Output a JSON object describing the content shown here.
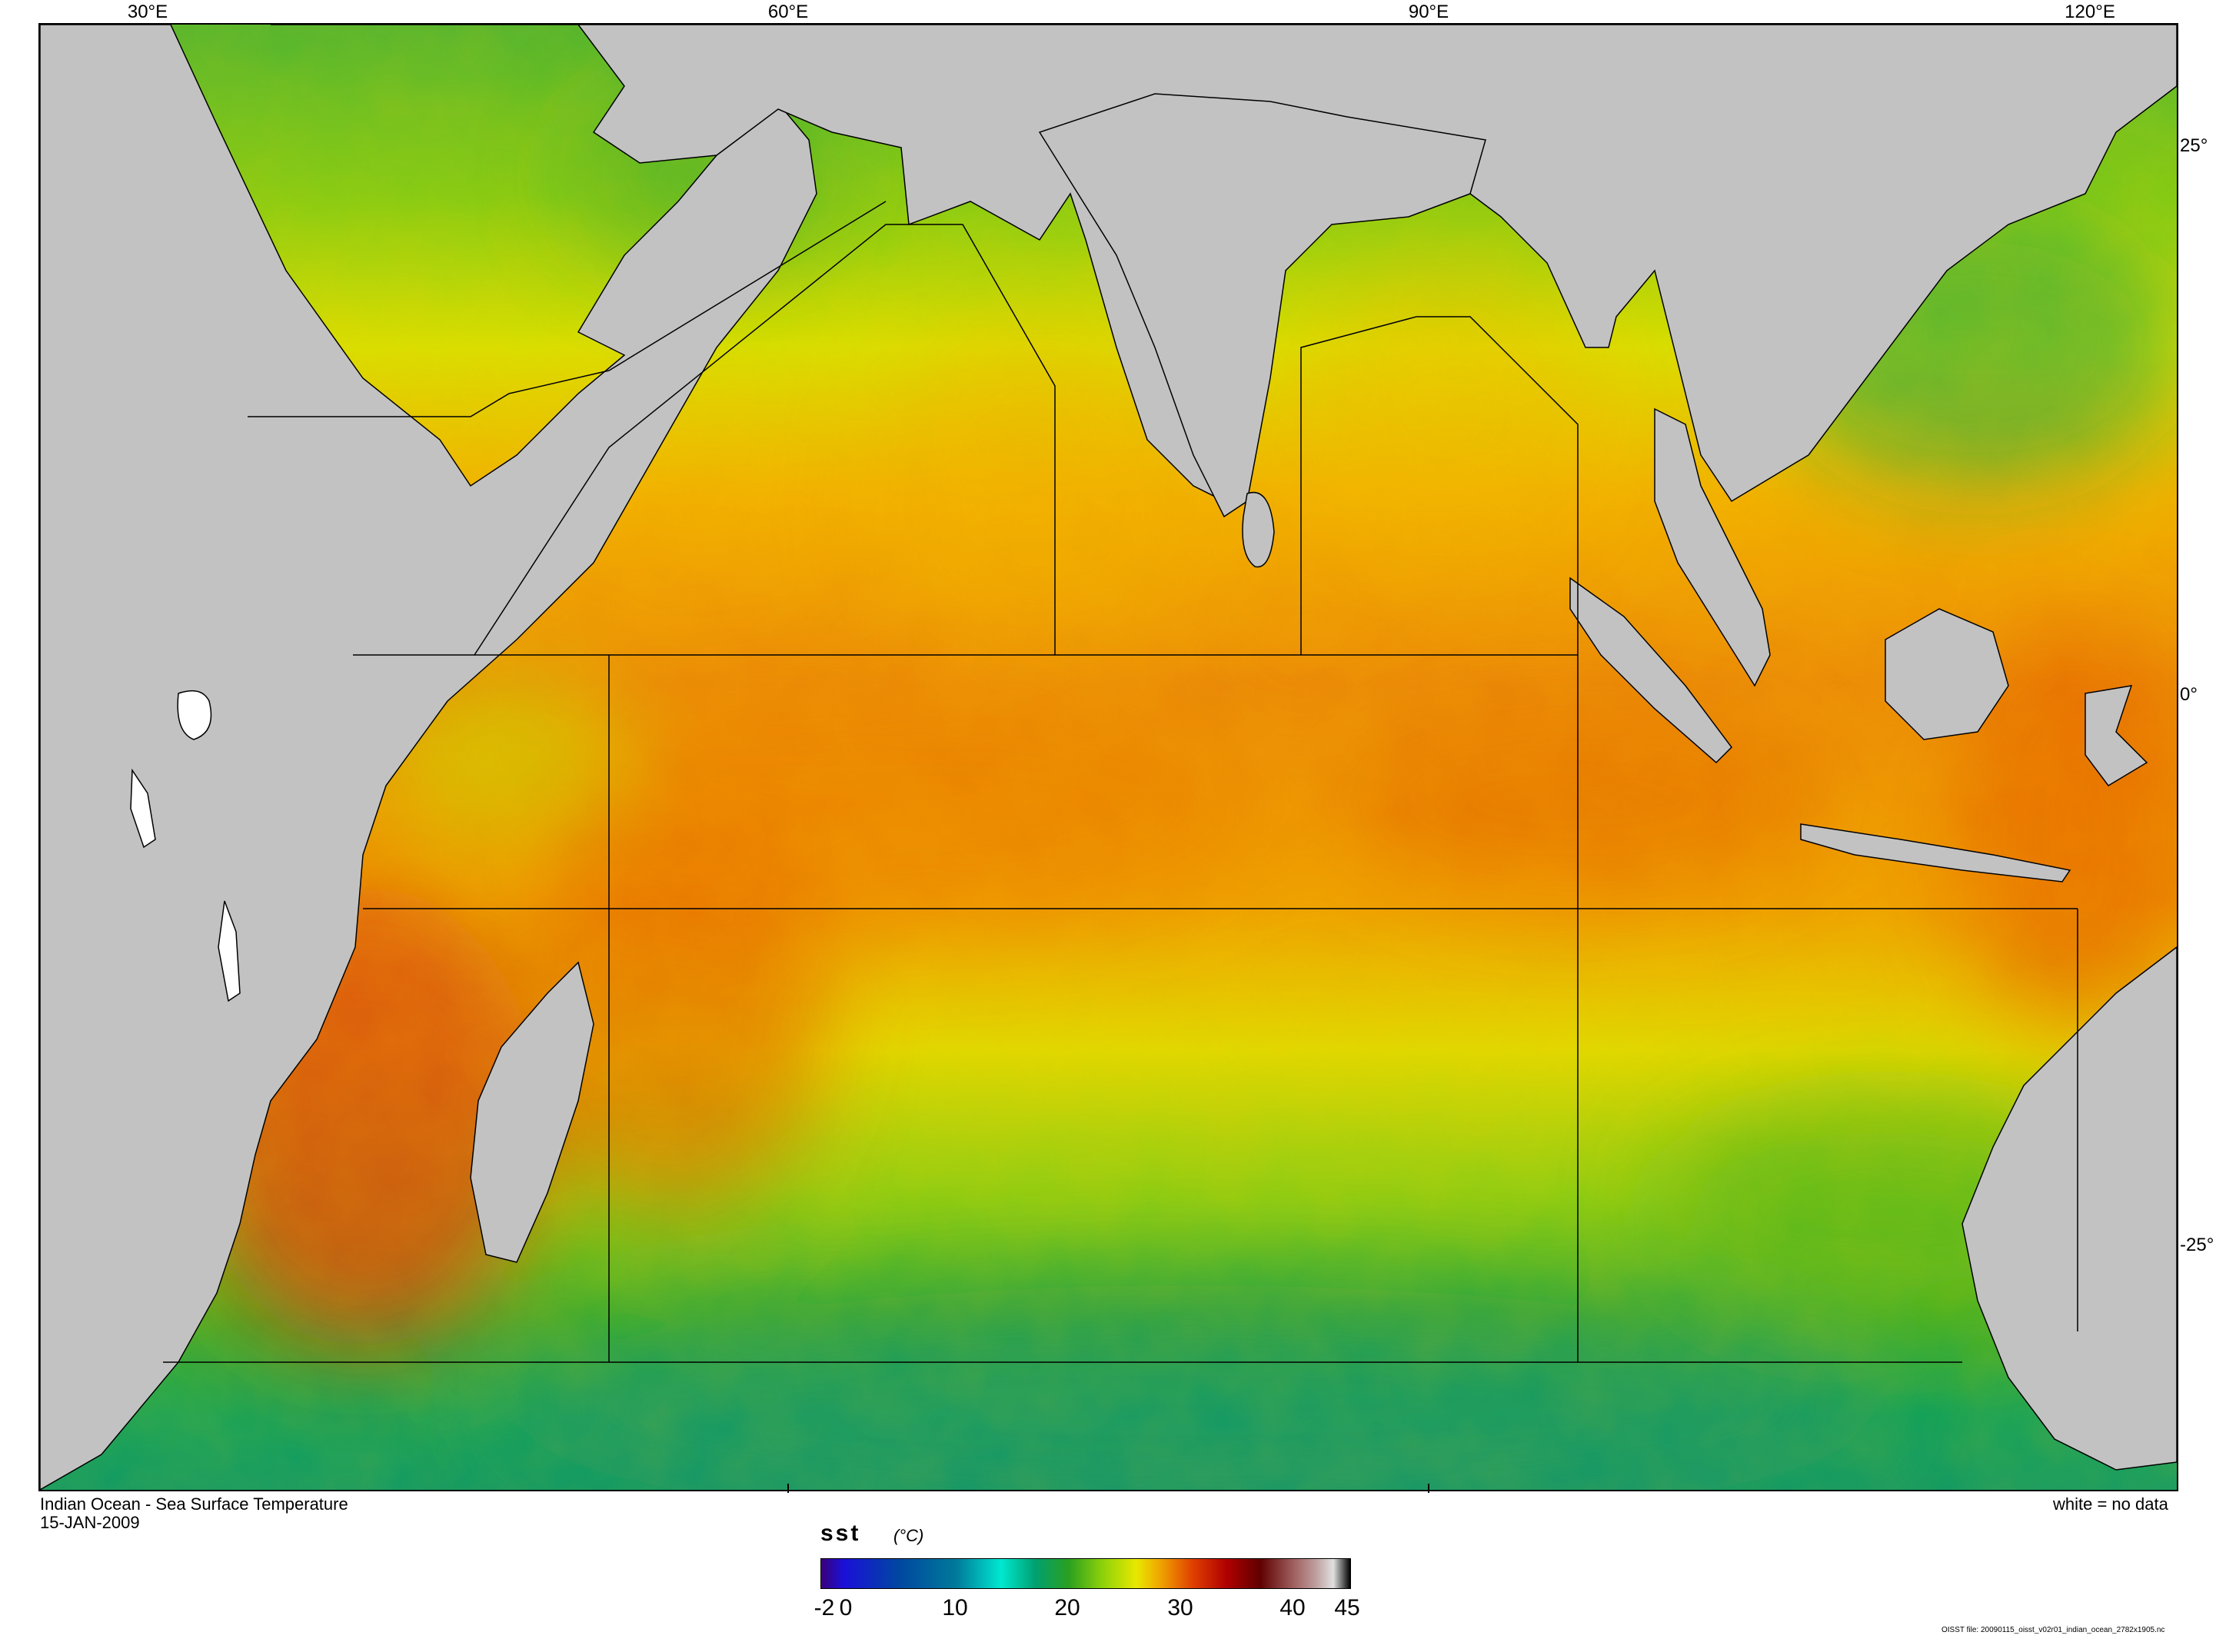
{
  "map": {
    "title": "Indian Ocean - Sea Surface Temperature",
    "date": "15-JAN-2009",
    "no_data_note": "white = no data",
    "file_note": "OISST file: 20090115_oisst_v02r01_indian_ocean_2782x1905.nc",
    "longitude_labels": [
      "30°E",
      "60°E",
      "90°E",
      "120°E"
    ],
    "latitude_labels": [
      "25°",
      "0°",
      "-25°"
    ],
    "colors": {
      "land": "#c2c2c2",
      "no_data": "#ffffff",
      "boundary": "#000000"
    }
  },
  "colorbar": {
    "variable": "sst",
    "units": "(°C)",
    "tick_labels": [
      "-2",
      "0",
      "10",
      "20",
      "30",
      "40",
      "45"
    ],
    "range": [
      -2,
      45
    ],
    "stops": [
      {
        "value": -2,
        "color": "#3a007a"
      },
      {
        "value": 0,
        "color": "#1a10d8"
      },
      {
        "value": 5,
        "color": "#0048a0"
      },
      {
        "value": 10,
        "color": "#007a9a"
      },
      {
        "value": 14,
        "color": "#00e8d0"
      },
      {
        "value": 17,
        "color": "#00a070"
      },
      {
        "value": 20,
        "color": "#2aa020"
      },
      {
        "value": 23,
        "color": "#8ed10a"
      },
      {
        "value": 26,
        "color": "#e8e800"
      },
      {
        "value": 28,
        "color": "#f0a800"
      },
      {
        "value": 31,
        "color": "#e04000"
      },
      {
        "value": 34,
        "color": "#b00000"
      },
      {
        "value": 37,
        "color": "#600000"
      },
      {
        "value": 40,
        "color": "#a06060"
      },
      {
        "value": 42,
        "color": "#c0a0a0"
      },
      {
        "value": 43.5,
        "color": "#e0e0e0"
      },
      {
        "value": 45,
        "color": "#000000"
      }
    ]
  }
}
